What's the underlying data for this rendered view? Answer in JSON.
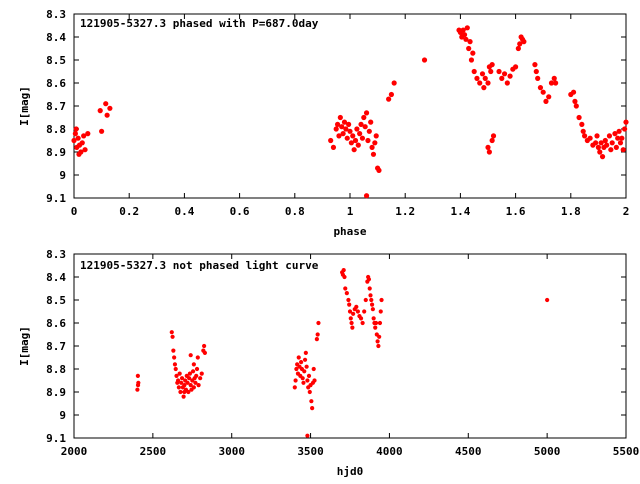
{
  "chart_data": [
    {
      "type": "scatter",
      "title": "121905-5327.3 phased with P=687.0day",
      "xlabel": "phase",
      "ylabel": "I[mag]",
      "xlim": [
        0,
        2
      ],
      "ylim": [
        9.1,
        8.3
      ],
      "y_inverted": true,
      "xticks": [
        "0",
        "0.2",
        "0.4",
        "0.6",
        "0.8",
        "1",
        "1.2",
        "1.4",
        "1.6",
        "1.8",
        "2"
      ],
      "yticks": [
        "8.3",
        "8.4",
        "8.5",
        "8.6",
        "8.7",
        "8.8",
        "8.9",
        "9",
        "9.1"
      ],
      "legend": "top-left",
      "color": "#ff0000",
      "points": [
        [
          0.0,
          8.85
        ],
        [
          0.005,
          8.82
        ],
        [
          0.01,
          8.88
        ],
        [
          0.015,
          8.84
        ],
        [
          0.02,
          8.87
        ],
        [
          0.025,
          8.9
        ],
        [
          0.03,
          8.86
        ],
        [
          0.035,
          8.83
        ],
        [
          0.04,
          8.89
        ],
        [
          0.05,
          8.82
        ],
        [
          0.008,
          8.8
        ],
        [
          0.018,
          8.91
        ],
        [
          0.095,
          8.72
        ],
        [
          0.1,
          8.81
        ],
        [
          0.115,
          8.69
        ],
        [
          0.12,
          8.74
        ],
        [
          0.13,
          8.71
        ],
        [
          0.93,
          8.85
        ],
        [
          0.94,
          8.88
        ],
        [
          0.95,
          8.8
        ],
        [
          0.955,
          8.78
        ],
        [
          0.96,
          8.83
        ],
        [
          0.965,
          8.75
        ],
        [
          0.97,
          8.79
        ],
        [
          0.975,
          8.82
        ],
        [
          0.98,
          8.77
        ],
        [
          0.985,
          8.8
        ],
        [
          0.99,
          8.84
        ],
        [
          0.995,
          8.78
        ],
        [
          1.0,
          8.81
        ],
        [
          1.005,
          8.86
        ],
        [
          1.01,
          8.83
        ],
        [
          1.015,
          8.89
        ],
        [
          1.02,
          8.85
        ],
        [
          1.025,
          8.8
        ],
        [
          1.03,
          8.87
        ],
        [
          1.035,
          8.82
        ],
        [
          1.04,
          8.78
        ],
        [
          1.045,
          8.84
        ],
        [
          1.05,
          8.75
        ],
        [
          1.055,
          8.79
        ],
        [
          1.06,
          8.73
        ],
        [
          1.065,
          8.85
        ],
        [
          1.07,
          8.81
        ],
        [
          1.075,
          8.77
        ],
        [
          1.08,
          8.88
        ],
        [
          1.085,
          8.91
        ],
        [
          1.09,
          8.86
        ],
        [
          1.095,
          8.83
        ],
        [
          1.1,
          8.97
        ],
        [
          1.105,
          8.98
        ],
        [
          1.06,
          9.09
        ],
        [
          1.14,
          8.67
        ],
        [
          1.15,
          8.65
        ],
        [
          1.16,
          8.6
        ],
        [
          1.27,
          8.5
        ],
        [
          1.395,
          8.37
        ],
        [
          1.4,
          8.38
        ],
        [
          1.405,
          8.4
        ],
        [
          1.41,
          8.37
        ],
        [
          1.415,
          8.39
        ],
        [
          1.42,
          8.41
        ],
        [
          1.425,
          8.36
        ],
        [
          1.43,
          8.45
        ],
        [
          1.435,
          8.42
        ],
        [
          1.44,
          8.5
        ],
        [
          1.445,
          8.47
        ],
        [
          1.45,
          8.55
        ],
        [
          1.46,
          8.58
        ],
        [
          1.47,
          8.6
        ],
        [
          1.48,
          8.56
        ],
        [
          1.485,
          8.62
        ],
        [
          1.49,
          8.58
        ],
        [
          1.5,
          8.6
        ],
        [
          1.505,
          8.53
        ],
        [
          1.51,
          8.55
        ],
        [
          1.515,
          8.52
        ],
        [
          1.5,
          8.88
        ],
        [
          1.505,
          8.9
        ],
        [
          1.515,
          8.85
        ],
        [
          1.52,
          8.83
        ],
        [
          1.54,
          8.55
        ],
        [
          1.55,
          8.58
        ],
        [
          1.56,
          8.56
        ],
        [
          1.57,
          8.6
        ],
        [
          1.58,
          8.57
        ],
        [
          1.59,
          8.54
        ],
        [
          1.6,
          8.53
        ],
        [
          1.61,
          8.45
        ],
        [
          1.615,
          8.43
        ],
        [
          1.62,
          8.4
        ],
        [
          1.625,
          8.41
        ],
        [
          1.63,
          8.42
        ],
        [
          1.67,
          8.52
        ],
        [
          1.675,
          8.55
        ],
        [
          1.68,
          8.58
        ],
        [
          1.69,
          8.62
        ],
        [
          1.7,
          8.64
        ],
        [
          1.71,
          8.68
        ],
        [
          1.72,
          8.66
        ],
        [
          1.73,
          8.6
        ],
        [
          1.74,
          8.58
        ],
        [
          1.745,
          8.6
        ],
        [
          1.8,
          8.65
        ],
        [
          1.81,
          8.64
        ],
        [
          1.815,
          8.68
        ],
        [
          1.82,
          8.7
        ],
        [
          1.83,
          8.75
        ],
        [
          1.84,
          8.78
        ],
        [
          1.845,
          8.81
        ],
        [
          1.85,
          8.83
        ],
        [
          1.86,
          8.85
        ],
        [
          1.87,
          8.84
        ],
        [
          1.88,
          8.87
        ],
        [
          1.89,
          8.86
        ],
        [
          1.895,
          8.83
        ],
        [
          1.9,
          8.88
        ],
        [
          1.905,
          8.9
        ],
        [
          1.91,
          8.86
        ],
        [
          1.915,
          8.92
        ],
        [
          1.92,
          8.88
        ],
        [
          1.925,
          8.85
        ],
        [
          1.93,
          8.87
        ],
        [
          1.94,
          8.83
        ],
        [
          1.945,
          8.89
        ],
        [
          1.95,
          8.86
        ],
        [
          1.96,
          8.82
        ],
        [
          1.965,
          8.88
        ],
        [
          1.97,
          8.84
        ],
        [
          1.975,
          8.81
        ],
        [
          1.98,
          8.86
        ],
        [
          1.985,
          8.84
        ],
        [
          1.99,
          8.89
        ],
        [
          1.995,
          8.8
        ],
        [
          2.0,
          8.77
        ]
      ]
    },
    {
      "type": "scatter",
      "title": "121905-5327.3 not phased light curve",
      "xlabel": "hjd0",
      "ylabel": "I[mag]",
      "xlim": [
        2000,
        5500
      ],
      "ylim": [
        9.1,
        8.3
      ],
      "y_inverted": true,
      "xticks": [
        "2000",
        "2500",
        "3000",
        "3500",
        "4000",
        "4500",
        "5000",
        "5500"
      ],
      "yticks": [
        "8.3",
        "8.4",
        "8.5",
        "8.6",
        "8.7",
        "8.8",
        "8.9",
        "9",
        "9.1"
      ],
      "legend": "top-left",
      "color": "#ff0000",
      "points": [
        [
          2405,
          8.83
        ],
        [
          2408,
          8.86
        ],
        [
          2402,
          8.89
        ],
        [
          2406,
          8.87
        ],
        [
          2620,
          8.64
        ],
        [
          2625,
          8.66
        ],
        [
          2630,
          8.72
        ],
        [
          2635,
          8.75
        ],
        [
          2640,
          8.78
        ],
        [
          2645,
          8.8
        ],
        [
          2650,
          8.83
        ],
        [
          2655,
          8.86
        ],
        [
          2660,
          8.85
        ],
        [
          2665,
          8.88
        ],
        [
          2670,
          8.82
        ],
        [
          2675,
          8.9
        ],
        [
          2680,
          8.86
        ],
        [
          2685,
          8.84
        ],
        [
          2690,
          8.88
        ],
        [
          2695,
          8.92
        ],
        [
          2700,
          8.87
        ],
        [
          2705,
          8.85
        ],
        [
          2710,
          8.89
        ],
        [
          2715,
          8.83
        ],
        [
          2720,
          8.86
        ],
        [
          2725,
          8.9
        ],
        [
          2730,
          8.84
        ],
        [
          2735,
          8.82
        ],
        [
          2740,
          8.87
        ],
        [
          2745,
          8.89
        ],
        [
          2750,
          8.85
        ],
        [
          2755,
          8.81
        ],
        [
          2760,
          8.88
        ],
        [
          2765,
          8.84
        ],
        [
          2770,
          8.86
        ],
        [
          2775,
          8.83
        ],
        [
          2780,
          8.8
        ],
        [
          2785,
          8.75
        ],
        [
          2790,
          8.87
        ],
        [
          2800,
          8.84
        ],
        [
          2810,
          8.82
        ],
        [
          2820,
          8.72
        ],
        [
          2825,
          8.7
        ],
        [
          2830,
          8.73
        ],
        [
          2740,
          8.74
        ],
        [
          2760,
          8.78
        ],
        [
          2700,
          8.9
        ],
        [
          3400,
          8.88
        ],
        [
          3405,
          8.85
        ],
        [
          3410,
          8.8
        ],
        [
          3415,
          8.78
        ],
        [
          3420,
          8.82
        ],
        [
          3425,
          8.75
        ],
        [
          3430,
          8.79
        ],
        [
          3435,
          8.83
        ],
        [
          3440,
          8.77
        ],
        [
          3445,
          8.8
        ],
        [
          3450,
          8.84
        ],
        [
          3455,
          8.86
        ],
        [
          3460,
          8.81
        ],
        [
          3465,
          8.76
        ],
        [
          3470,
          8.73
        ],
        [
          3475,
          8.79
        ],
        [
          3480,
          8.85
        ],
        [
          3485,
          8.88
        ],
        [
          3490,
          8.83
        ],
        [
          3495,
          8.9
        ],
        [
          3500,
          8.87
        ],
        [
          3505,
          8.94
        ],
        [
          3510,
          8.97
        ],
        [
          3515,
          8.86
        ],
        [
          3520,
          8.8
        ],
        [
          3525,
          8.85
        ],
        [
          3480,
          9.09
        ],
        [
          3540,
          8.67
        ],
        [
          3545,
          8.65
        ],
        [
          3550,
          8.6
        ],
        [
          3700,
          8.38
        ],
        [
          3705,
          8.39
        ],
        [
          3710,
          8.37
        ],
        [
          3715,
          8.4
        ],
        [
          3720,
          8.45
        ],
        [
          3730,
          8.47
        ],
        [
          3740,
          8.5
        ],
        [
          3745,
          8.52
        ],
        [
          3750,
          8.55
        ],
        [
          3755,
          8.58
        ],
        [
          3760,
          8.6
        ],
        [
          3765,
          8.62
        ],
        [
          3770,
          8.56
        ],
        [
          3780,
          8.54
        ],
        [
          3790,
          8.53
        ],
        [
          3800,
          8.55
        ],
        [
          3810,
          8.57
        ],
        [
          3820,
          8.58
        ],
        [
          3830,
          8.6
        ],
        [
          3840,
          8.55
        ],
        [
          3850,
          8.5
        ],
        [
          3860,
          8.42
        ],
        [
          3865,
          8.4
        ],
        [
          3870,
          8.41
        ],
        [
          3875,
          8.45
        ],
        [
          3880,
          8.48
        ],
        [
          3885,
          8.5
        ],
        [
          3890,
          8.52
        ],
        [
          3895,
          8.54
        ],
        [
          3900,
          8.58
        ],
        [
          3905,
          8.6
        ],
        [
          3910,
          8.62
        ],
        [
          3915,
          8.6
        ],
        [
          3920,
          8.65
        ],
        [
          3925,
          8.68
        ],
        [
          3930,
          8.7
        ],
        [
          3935,
          8.66
        ],
        [
          3940,
          8.6
        ],
        [
          3945,
          8.55
        ],
        [
          3950,
          8.5
        ],
        [
          5000,
          8.5
        ]
      ]
    }
  ]
}
